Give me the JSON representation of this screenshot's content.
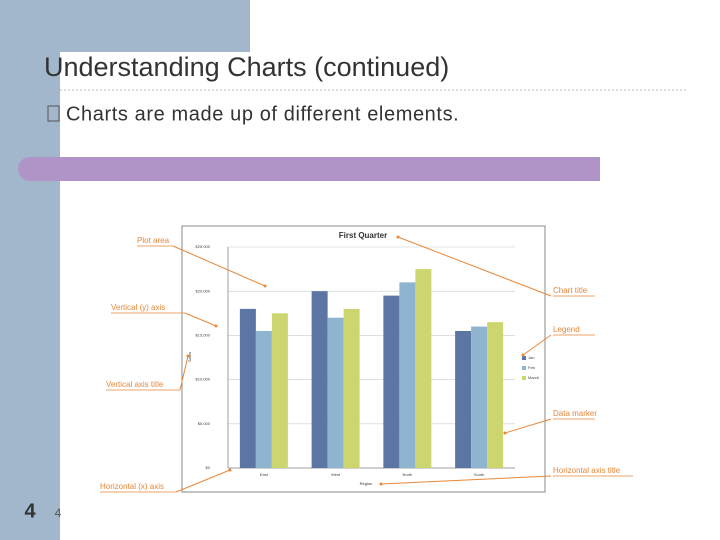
{
  "slide": {
    "title": "Understanding Charts (continued)",
    "bullet": "Charts are made up of different elements.",
    "number": 4,
    "footer_number": 4
  },
  "chart_data": {
    "type": "bar",
    "title": "First Quarter",
    "x_label": "Region",
    "y_label": "Sales",
    "categories": [
      "East",
      "West",
      "North",
      "South"
    ],
    "series": [
      {
        "name": "Jan",
        "color": "#5b76a3",
        "values": [
          18000,
          20000,
          19500,
          15500
        ]
      },
      {
        "name": "Feb",
        "color": "#8fb4cf",
        "values": [
          15500,
          17000,
          21000,
          16000
        ]
      },
      {
        "name": "March",
        "color": "#cdd66e",
        "values": [
          17500,
          18000,
          22500,
          16500
        ]
      }
    ],
    "ylim": [
      0,
      25000
    ],
    "yticks": [
      {
        "value": 0,
        "label": "$0"
      },
      {
        "value": 5000,
        "label": "$5,000"
      },
      {
        "value": 10000,
        "label": "$10,000"
      },
      {
        "value": 15000,
        "label": "$15,000"
      },
      {
        "value": 20000,
        "label": "$20,000"
      },
      {
        "value": 25000,
        "label": "$25,000"
      }
    ],
    "grid": true,
    "legend": "right",
    "annotations": [
      "Plot area",
      "Vertical (y) axis",
      "Vertical axis title",
      "Horizontal (x) axis",
      "Chart title",
      "Legend",
      "Data marker",
      "Horizontal axis title"
    ]
  }
}
